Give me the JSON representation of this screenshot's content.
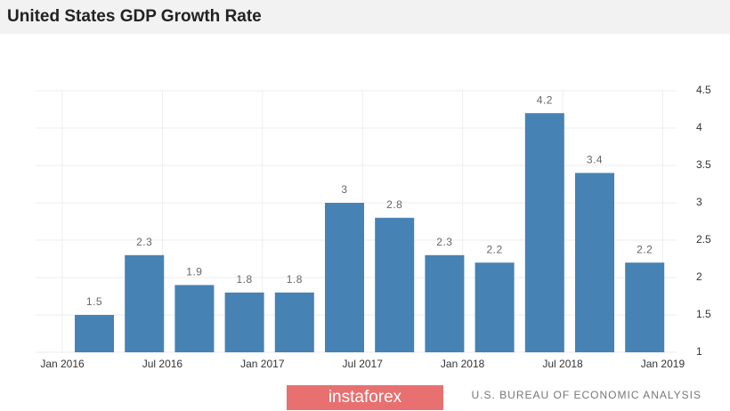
{
  "chart_data": {
    "type": "bar",
    "title": "United States GDP Growth Rate",
    "categories": [
      null,
      null,
      null,
      null,
      null,
      null,
      null,
      null,
      null,
      null,
      null,
      null
    ],
    "values": [
      1.5,
      2.3,
      1.9,
      1.8,
      1.8,
      3,
      2.8,
      2.3,
      2.2,
      4.2,
      3.4,
      2.2
    ],
    "color": "#4682b4",
    "xtick_labels": [
      "Jan 2016",
      "Jul 2016",
      "Jan 2017",
      "Jul 2017",
      "Jan 2018",
      "Jul 2018",
      "Jan 2019"
    ],
    "ylim": [
      1,
      4.5
    ],
    "yticks": [
      1,
      1.5,
      2,
      2.5,
      3,
      3.5,
      4,
      4.5
    ],
    "grid": true,
    "source": "U.S. BUREAU OF ECONOMIC ANALYSIS",
    "logo": "instaforex"
  }
}
